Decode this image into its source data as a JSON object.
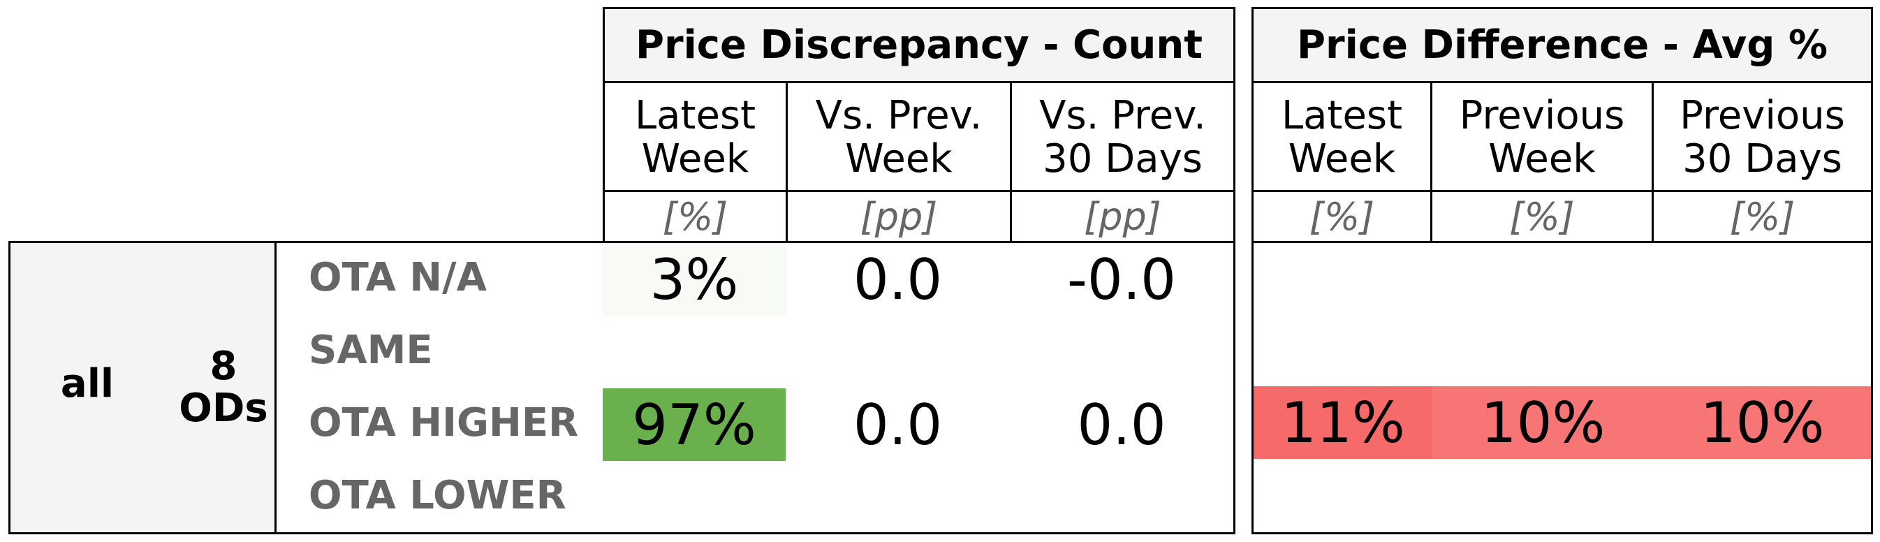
{
  "chart_data": {
    "type": "table",
    "segment": {
      "group": "all",
      "ods": "8\nODs"
    },
    "row_labels": [
      "OTA N/A",
      "SAME",
      "OTA HIGHER",
      "OTA LOWER"
    ],
    "panels": [
      {
        "title": "Price Discrepancy - Count",
        "columns": [
          {
            "label": "Latest\nWeek",
            "unit": "[%]"
          },
          {
            "label": "Vs. Prev.\nWeek",
            "unit": "[pp]"
          },
          {
            "label": "Vs. Prev.\n30 Days",
            "unit": "[pp]"
          }
        ],
        "rows": [
          [
            "3%",
            "0.0",
            "-0.0"
          ],
          [
            "",
            "",
            ""
          ],
          [
            "97%",
            "0.0",
            "0.0"
          ],
          [
            "",
            "",
            ""
          ]
        ],
        "cell_colors": [
          [
            "#f8faf6",
            "",
            ""
          ],
          [
            "",
            "",
            ""
          ],
          [
            "#6ab04c",
            "",
            ""
          ],
          [
            "",
            "",
            ""
          ]
        ]
      },
      {
        "title": "Price Difference - Avg %",
        "columns": [
          {
            "label": "Latest\nWeek",
            "unit": "[%]"
          },
          {
            "label": "Previous\nWeek",
            "unit": "[%]"
          },
          {
            "label": "Previous\n30 Days",
            "unit": "[%]"
          }
        ],
        "rows": [
          [
            "",
            "",
            ""
          ],
          [
            "",
            "",
            ""
          ],
          [
            "11%",
            "10%",
            "10%"
          ],
          [
            "",
            "",
            ""
          ]
        ],
        "cell_colors": [
          [
            "",
            "",
            ""
          ],
          [
            "",
            "",
            ""
          ],
          [
            "#f76a6a",
            "#f77575",
            "#f77575"
          ],
          [
            "",
            "",
            ""
          ]
        ]
      }
    ]
  }
}
